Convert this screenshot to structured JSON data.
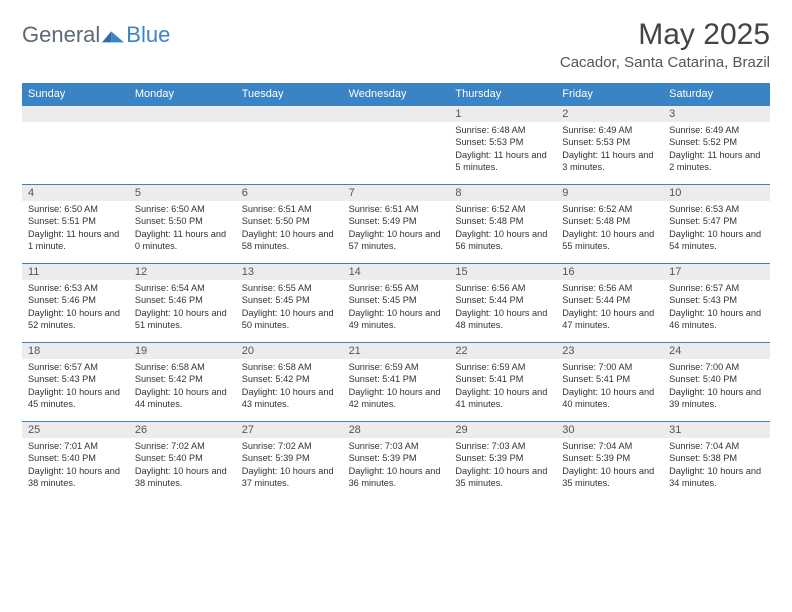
{
  "logo": {
    "text1": "General",
    "text2": "Blue"
  },
  "title": "May 2025",
  "location": "Cacador, Santa Catarina, Brazil",
  "colors": {
    "header_bg": "#3a83c4",
    "header_text": "#ffffff",
    "daynum_bg": "#ececec",
    "border": "#3a83c4",
    "text": "#333333",
    "logo_gray": "#5d6a76",
    "logo_blue": "#3a83c4"
  },
  "dayHeaders": [
    "Sunday",
    "Monday",
    "Tuesday",
    "Wednesday",
    "Thursday",
    "Friday",
    "Saturday"
  ],
  "weeks": [
    [
      {
        "n": "",
        "sr": "",
        "ss": "",
        "dl": ""
      },
      {
        "n": "",
        "sr": "",
        "ss": "",
        "dl": ""
      },
      {
        "n": "",
        "sr": "",
        "ss": "",
        "dl": ""
      },
      {
        "n": "",
        "sr": "",
        "ss": "",
        "dl": ""
      },
      {
        "n": "1",
        "sr": "Sunrise: 6:48 AM",
        "ss": "Sunset: 5:53 PM",
        "dl": "Daylight: 11 hours and 5 minutes."
      },
      {
        "n": "2",
        "sr": "Sunrise: 6:49 AM",
        "ss": "Sunset: 5:53 PM",
        "dl": "Daylight: 11 hours and 3 minutes."
      },
      {
        "n": "3",
        "sr": "Sunrise: 6:49 AM",
        "ss": "Sunset: 5:52 PM",
        "dl": "Daylight: 11 hours and 2 minutes."
      }
    ],
    [
      {
        "n": "4",
        "sr": "Sunrise: 6:50 AM",
        "ss": "Sunset: 5:51 PM",
        "dl": "Daylight: 11 hours and 1 minute."
      },
      {
        "n": "5",
        "sr": "Sunrise: 6:50 AM",
        "ss": "Sunset: 5:50 PM",
        "dl": "Daylight: 11 hours and 0 minutes."
      },
      {
        "n": "6",
        "sr": "Sunrise: 6:51 AM",
        "ss": "Sunset: 5:50 PM",
        "dl": "Daylight: 10 hours and 58 minutes."
      },
      {
        "n": "7",
        "sr": "Sunrise: 6:51 AM",
        "ss": "Sunset: 5:49 PM",
        "dl": "Daylight: 10 hours and 57 minutes."
      },
      {
        "n": "8",
        "sr": "Sunrise: 6:52 AM",
        "ss": "Sunset: 5:48 PM",
        "dl": "Daylight: 10 hours and 56 minutes."
      },
      {
        "n": "9",
        "sr": "Sunrise: 6:52 AM",
        "ss": "Sunset: 5:48 PM",
        "dl": "Daylight: 10 hours and 55 minutes."
      },
      {
        "n": "10",
        "sr": "Sunrise: 6:53 AM",
        "ss": "Sunset: 5:47 PM",
        "dl": "Daylight: 10 hours and 54 minutes."
      }
    ],
    [
      {
        "n": "11",
        "sr": "Sunrise: 6:53 AM",
        "ss": "Sunset: 5:46 PM",
        "dl": "Daylight: 10 hours and 52 minutes."
      },
      {
        "n": "12",
        "sr": "Sunrise: 6:54 AM",
        "ss": "Sunset: 5:46 PM",
        "dl": "Daylight: 10 hours and 51 minutes."
      },
      {
        "n": "13",
        "sr": "Sunrise: 6:55 AM",
        "ss": "Sunset: 5:45 PM",
        "dl": "Daylight: 10 hours and 50 minutes."
      },
      {
        "n": "14",
        "sr": "Sunrise: 6:55 AM",
        "ss": "Sunset: 5:45 PM",
        "dl": "Daylight: 10 hours and 49 minutes."
      },
      {
        "n": "15",
        "sr": "Sunrise: 6:56 AM",
        "ss": "Sunset: 5:44 PM",
        "dl": "Daylight: 10 hours and 48 minutes."
      },
      {
        "n": "16",
        "sr": "Sunrise: 6:56 AM",
        "ss": "Sunset: 5:44 PM",
        "dl": "Daylight: 10 hours and 47 minutes."
      },
      {
        "n": "17",
        "sr": "Sunrise: 6:57 AM",
        "ss": "Sunset: 5:43 PM",
        "dl": "Daylight: 10 hours and 46 minutes."
      }
    ],
    [
      {
        "n": "18",
        "sr": "Sunrise: 6:57 AM",
        "ss": "Sunset: 5:43 PM",
        "dl": "Daylight: 10 hours and 45 minutes."
      },
      {
        "n": "19",
        "sr": "Sunrise: 6:58 AM",
        "ss": "Sunset: 5:42 PM",
        "dl": "Daylight: 10 hours and 44 minutes."
      },
      {
        "n": "20",
        "sr": "Sunrise: 6:58 AM",
        "ss": "Sunset: 5:42 PM",
        "dl": "Daylight: 10 hours and 43 minutes."
      },
      {
        "n": "21",
        "sr": "Sunrise: 6:59 AM",
        "ss": "Sunset: 5:41 PM",
        "dl": "Daylight: 10 hours and 42 minutes."
      },
      {
        "n": "22",
        "sr": "Sunrise: 6:59 AM",
        "ss": "Sunset: 5:41 PM",
        "dl": "Daylight: 10 hours and 41 minutes."
      },
      {
        "n": "23",
        "sr": "Sunrise: 7:00 AM",
        "ss": "Sunset: 5:41 PM",
        "dl": "Daylight: 10 hours and 40 minutes."
      },
      {
        "n": "24",
        "sr": "Sunrise: 7:00 AM",
        "ss": "Sunset: 5:40 PM",
        "dl": "Daylight: 10 hours and 39 minutes."
      }
    ],
    [
      {
        "n": "25",
        "sr": "Sunrise: 7:01 AM",
        "ss": "Sunset: 5:40 PM",
        "dl": "Daylight: 10 hours and 38 minutes."
      },
      {
        "n": "26",
        "sr": "Sunrise: 7:02 AM",
        "ss": "Sunset: 5:40 PM",
        "dl": "Daylight: 10 hours and 38 minutes."
      },
      {
        "n": "27",
        "sr": "Sunrise: 7:02 AM",
        "ss": "Sunset: 5:39 PM",
        "dl": "Daylight: 10 hours and 37 minutes."
      },
      {
        "n": "28",
        "sr": "Sunrise: 7:03 AM",
        "ss": "Sunset: 5:39 PM",
        "dl": "Daylight: 10 hours and 36 minutes."
      },
      {
        "n": "29",
        "sr": "Sunrise: 7:03 AM",
        "ss": "Sunset: 5:39 PM",
        "dl": "Daylight: 10 hours and 35 minutes."
      },
      {
        "n": "30",
        "sr": "Sunrise: 7:04 AM",
        "ss": "Sunset: 5:39 PM",
        "dl": "Daylight: 10 hours and 35 minutes."
      },
      {
        "n": "31",
        "sr": "Sunrise: 7:04 AM",
        "ss": "Sunset: 5:38 PM",
        "dl": "Daylight: 10 hours and 34 minutes."
      }
    ]
  ]
}
